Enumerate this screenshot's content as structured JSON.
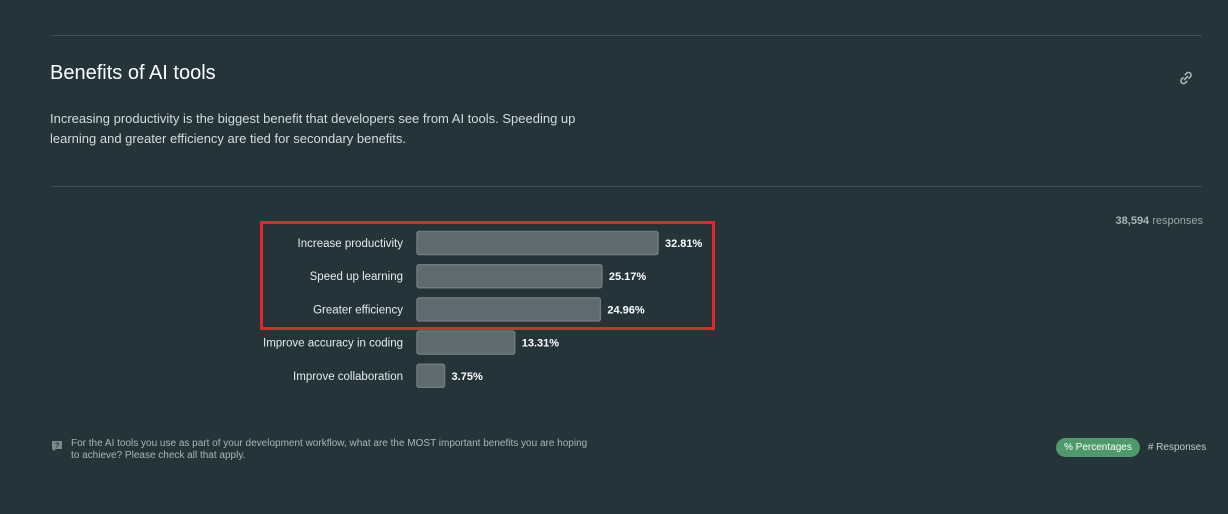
{
  "section": {
    "title": "Benefits of AI tools",
    "description": "Increasing productivity is the biggest benefit that developers see from AI tools. Speeding up learning and greater efficiency are tied for secondary benefits.",
    "responses_count": "38,594",
    "responses_suffix": " responses",
    "question": "For the AI tools you use as part of your development workflow, what are the MOST important benefits you are hoping to achieve? Please check all that apply.",
    "toggle": {
      "percentages_label": "% Percentages",
      "responses_label": "# Responses"
    },
    "icons": {
      "link": "link-icon",
      "question": "question-icon"
    }
  },
  "chart_data": {
    "type": "bar",
    "orientation": "horizontal",
    "categories": [
      "Increase productivity",
      "Speed up learning",
      "Greater efficiency",
      "Improve accuracy in coding",
      "Improve collaboration"
    ],
    "values": [
      32.81,
      25.17,
      24.96,
      13.31,
      3.75
    ],
    "value_labels": [
      "32.81%",
      "25.17%",
      "24.96%",
      "13.31%",
      "3.75%"
    ],
    "unit": "%",
    "highlighted_categories": [
      "Increase productivity",
      "Speed up learning",
      "Greater efficiency"
    ],
    "colors": {
      "bar": "#5f6a6e",
      "bar_border": "#6f7b7f",
      "highlight": "#e4252a"
    },
    "grid": false,
    "legend": "none"
  }
}
